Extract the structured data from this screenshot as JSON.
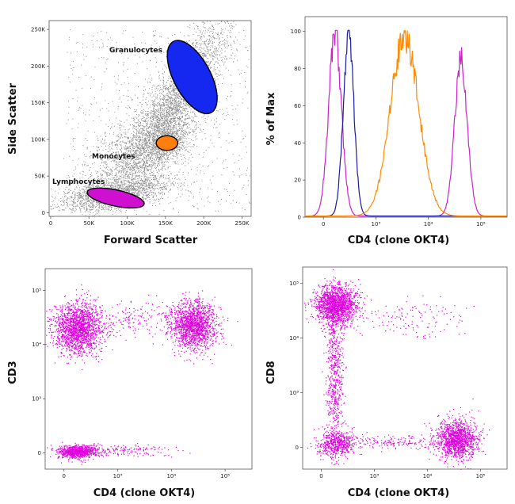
{
  "chart_data": [
    {
      "type": "scatter",
      "id": "fsc-ssc",
      "xlabel": "Forward Scatter",
      "ylabel": "Side Scatter",
      "x_ticks": [
        {
          "v": 0,
          "t": "0"
        },
        {
          "v": 50,
          "t": "50K"
        },
        {
          "v": 100,
          "t": "100K"
        },
        {
          "v": 150,
          "t": "150K"
        },
        {
          "v": 200,
          "t": "200K"
        },
        {
          "v": 250,
          "t": "250K"
        }
      ],
      "y_ticks": [
        {
          "v": 0,
          "t": "0"
        },
        {
          "v": 50,
          "t": "50K"
        },
        {
          "v": 100,
          "t": "100K"
        },
        {
          "v": 150,
          "t": "150K"
        },
        {
          "v": 200,
          "t": "200K"
        },
        {
          "v": 250,
          "t": "250K"
        }
      ],
      "xlim": [
        -2,
        262
      ],
      "ylim": [
        -5,
        262
      ],
      "background_color": "#8c8c8c",
      "gates": [
        {
          "name": "Granulocytes",
          "color": "#1428f0",
          "cx": 185,
          "cy": 185,
          "rx": 24,
          "ry": 55,
          "angle": -28
        },
        {
          "name": "Monocytes",
          "color": "#ff7f0e",
          "cx": 152,
          "cy": 95,
          "rx": 14,
          "ry": 10,
          "angle": 0
        },
        {
          "name": "Lymphocytes",
          "color": "#d010d0",
          "cx": 85,
          "cy": 20,
          "rx": 38,
          "ry": 11,
          "angle": 12
        }
      ]
    },
    {
      "type": "line",
      "id": "cd4-histogram",
      "xlabel": "CD4 (clone OKT4)",
      "ylabel": "% of Max",
      "x_ticks": [
        {
          "v": 0,
          "t": "0"
        },
        {
          "v": 1,
          "t": "10³"
        },
        {
          "v": 2,
          "t": "10⁴"
        },
        {
          "v": 3,
          "t": "10⁵"
        }
      ],
      "y_ticks": [
        {
          "v": 0,
          "t": "0"
        },
        {
          "v": 20,
          "t": "20"
        },
        {
          "v": 40,
          "t": "40"
        },
        {
          "v": 60,
          "t": "60"
        },
        {
          "v": 80,
          "t": "80"
        },
        {
          "v": 100,
          "t": "100"
        }
      ],
      "xlim": [
        -0.35,
        3.5
      ],
      "ylim": [
        0,
        108
      ],
      "series": [
        {
          "color": "#cc22cc",
          "peaks": [
            {
              "mu": 0.22,
              "sd": 0.12,
              "h": 100
            },
            {
              "mu": 2.62,
              "sd": 0.12,
              "h": 85
            }
          ]
        },
        {
          "color": "#1a1aa0",
          "peaks": [
            {
              "mu": 0.48,
              "sd": 0.1,
              "h": 100
            }
          ]
        },
        {
          "color": "#ff8c00",
          "peaks": [
            {
              "mu": 1.55,
              "sd": 0.27,
              "h": 97
            }
          ]
        }
      ]
    },
    {
      "type": "scatter",
      "id": "cd4-cd3",
      "xlabel": "CD4 (clone OKT4)",
      "ylabel": "CD3",
      "x_ticks": [
        {
          "v": 0,
          "t": "0"
        },
        {
          "v": 1,
          "t": "10³"
        },
        {
          "v": 2,
          "t": "10⁴"
        },
        {
          "v": 3,
          "t": "10⁵"
        }
      ],
      "y_ticks": [
        {
          "v": 0,
          "t": "0"
        },
        {
          "v": 1,
          "t": "10³"
        },
        {
          "v": 2,
          "t": "10⁴"
        },
        {
          "v": 3,
          "t": "10⁵"
        }
      ],
      "xlim": [
        -0.35,
        3.5
      ],
      "ylim": [
        -0.3,
        3.4
      ],
      "color": "#e000e0",
      "populations": [
        {
          "x": 0.25,
          "y": 2.3,
          "sx": 0.22,
          "sy": 0.23,
          "n": 1700
        },
        {
          "x": 2.42,
          "y": 2.35,
          "sx": 0.21,
          "sy": 0.22,
          "n": 1600
        },
        {
          "x": 0.25,
          "y": 0.03,
          "sx": 0.18,
          "sy": 0.06,
          "n": 900
        },
        {
          "x": 1.3,
          "y": 2.45,
          "sx": 0.55,
          "sy": 0.18,
          "n": 220
        },
        {
          "x": 1.1,
          "y": 0.05,
          "sx": 0.5,
          "sy": 0.05,
          "n": 160
        }
      ]
    },
    {
      "type": "scatter",
      "id": "cd4-cd8",
      "xlabel": "CD4 (clone OKT4)",
      "ylabel": "CD8",
      "x_ticks": [
        {
          "v": 0,
          "t": "0"
        },
        {
          "v": 1,
          "t": "10³"
        },
        {
          "v": 2,
          "t": "10⁴"
        },
        {
          "v": 3,
          "t": "10⁵"
        }
      ],
      "y_ticks": [
        {
          "v": 0,
          "t": "0"
        },
        {
          "v": 1,
          "t": "10³"
        },
        {
          "v": 2,
          "t": "10⁴"
        },
        {
          "v": 3,
          "t": "10⁵"
        }
      ],
      "xlim": [
        -0.35,
        3.5
      ],
      "ylim": [
        -0.4,
        3.3
      ],
      "color": "#e000e0",
      "populations": [
        {
          "x": 0.28,
          "y": 2.62,
          "sx": 0.2,
          "sy": 0.18,
          "n": 1600
        },
        {
          "x": 0.25,
          "y": 1.3,
          "sx": 0.08,
          "sy": 0.7,
          "n": 650
        },
        {
          "x": 0.3,
          "y": 0.07,
          "sx": 0.18,
          "sy": 0.12,
          "n": 550
        },
        {
          "x": 2.55,
          "y": 0.15,
          "sx": 0.2,
          "sy": 0.18,
          "n": 1300
        },
        {
          "x": 1.4,
          "y": 0.1,
          "sx": 0.6,
          "sy": 0.06,
          "n": 170
        },
        {
          "x": 1.6,
          "y": 2.35,
          "sx": 0.6,
          "sy": 0.2,
          "n": 140
        }
      ]
    }
  ]
}
